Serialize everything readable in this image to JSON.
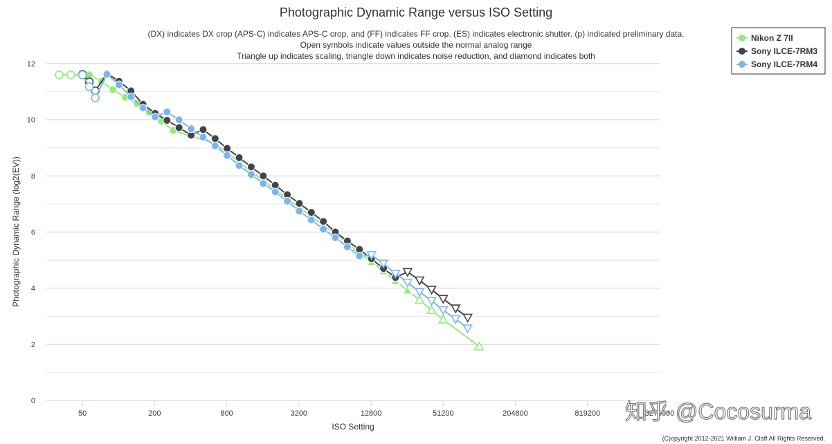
{
  "chart_data": {
    "type": "line",
    "title": "Photographic Dynamic Range versus ISO Setting",
    "subtitle_lines": [
      "(DX) indicates DX crop (APS-C) indicates APS-C crop, and (FF) indicates FF crop. (ES) indicates electronic shutter. (p) indicated preliminary data.",
      "Open symbols indicate values outside the normal analog range",
      "Triangle up indicates scaling, triangle down indicates noise reduction, and diamond indicates both"
    ],
    "xlabel": "ISO Setting",
    "ylabel": "Photographic Dynamic Range (log2(EV))",
    "x_scale": "log2",
    "xlim": [
      25,
      3276800
    ],
    "ylim": [
      0,
      12
    ],
    "x_ticks": [
      50,
      200,
      800,
      3200,
      12800,
      51200,
      204800,
      819200,
      3276800
    ],
    "x_tick_labels": [
      "50",
      "200",
      "800",
      "3200",
      "12800",
      "51200",
      "204800",
      "819200",
      "3276800"
    ],
    "y_ticks": [
      0,
      2,
      4,
      6,
      8,
      10,
      12
    ],
    "y_tick_labels": [
      "0",
      "2",
      "4",
      "6",
      "8",
      "10",
      "12"
    ],
    "grid": true,
    "legend_position": "top-right",
    "series": [
      {
        "name": "Nikon Z 7II",
        "color": "#90ed7d",
        "points": [
          {
            "x": 32,
            "y": 11.6,
            "marker": "circle",
            "open": true
          },
          {
            "x": 40,
            "y": 11.6,
            "marker": "circle",
            "open": true
          },
          {
            "x": 57,
            "y": 11.6,
            "marker": "circle",
            "open": false
          },
          {
            "x": 72,
            "y": 11.37,
            "marker": "circle",
            "open": false
          },
          {
            "x": 90,
            "y": 11.07,
            "marker": "circle",
            "open": false
          },
          {
            "x": 114,
            "y": 10.8,
            "marker": "circle",
            "open": false
          },
          {
            "x": 143,
            "y": 10.57,
            "marker": "circle",
            "open": false
          },
          {
            "x": 180,
            "y": 10.27,
            "marker": "circle",
            "open": false
          },
          {
            "x": 228,
            "y": 9.95,
            "marker": "circle",
            "open": false
          },
          {
            "x": 286,
            "y": 9.62,
            "marker": "circle",
            "open": false
          },
          {
            "x": 640,
            "y": 9.15,
            "marker": "circle",
            "open": false
          },
          {
            "x": 806,
            "y": 8.82,
            "marker": "circle",
            "open": false
          },
          {
            "x": 1016,
            "y": 8.5,
            "marker": "circle",
            "open": false
          },
          {
            "x": 1280,
            "y": 8.15,
            "marker": "circle",
            "open": false
          },
          {
            "x": 1613,
            "y": 7.85,
            "marker": "circle",
            "open": false
          },
          {
            "x": 2032,
            "y": 7.5,
            "marker": "circle",
            "open": false
          },
          {
            "x": 2560,
            "y": 7.2,
            "marker": "circle",
            "open": false
          },
          {
            "x": 3225,
            "y": 6.85,
            "marker": "circle",
            "open": false
          },
          {
            "x": 4064,
            "y": 6.58,
            "marker": "circle",
            "open": false
          },
          {
            "x": 5120,
            "y": 6.22,
            "marker": "circle",
            "open": false
          },
          {
            "x": 6451,
            "y": 5.97,
            "marker": "circle",
            "open": false
          },
          {
            "x": 8128,
            "y": 5.6,
            "marker": "triangle-up",
            "open": false
          },
          {
            "x": 10240,
            "y": 5.25,
            "marker": "triangle-up",
            "open": false
          },
          {
            "x": 12902,
            "y": 4.93,
            "marker": "triangle-up",
            "open": false
          },
          {
            "x": 16256,
            "y": 4.6,
            "marker": "triangle-up",
            "open": false
          },
          {
            "x": 20480,
            "y": 4.25,
            "marker": "triangle-up",
            "open": false
          },
          {
            "x": 25803,
            "y": 3.92,
            "marker": "triangle-up",
            "open": false
          },
          {
            "x": 32512,
            "y": 3.58,
            "marker": "triangle-up",
            "open": true
          },
          {
            "x": 40960,
            "y": 3.22,
            "marker": "triangle-up",
            "open": true
          },
          {
            "x": 51200,
            "y": 2.88,
            "marker": "triangle-up",
            "open": true
          },
          {
            "x": 102400,
            "y": 1.92,
            "marker": "triangle-up",
            "open": true
          }
        ]
      },
      {
        "name": "Sony ILCE-7RM3",
        "color": "#434348",
        "points": [
          {
            "x": 50,
            "y": 11.62,
            "marker": "circle",
            "open": true
          },
          {
            "x": 57,
            "y": 11.35,
            "marker": "circle",
            "open": true
          },
          {
            "x": 64,
            "y": 11.03,
            "marker": "circle",
            "open": true
          },
          {
            "x": 80,
            "y": 11.65,
            "marker": "circle",
            "open": false
          },
          {
            "x": 101,
            "y": 11.37,
            "marker": "circle",
            "open": false
          },
          {
            "x": 127,
            "y": 11.03,
            "marker": "circle",
            "open": false
          },
          {
            "x": 160,
            "y": 10.55,
            "marker": "circle",
            "open": false
          },
          {
            "x": 202,
            "y": 10.23,
            "marker": "circle",
            "open": false
          },
          {
            "x": 254,
            "y": 9.98,
            "marker": "circle",
            "open": false
          },
          {
            "x": 320,
            "y": 9.72,
            "marker": "circle",
            "open": false
          },
          {
            "x": 403,
            "y": 9.45,
            "marker": "circle",
            "open": false
          },
          {
            "x": 508,
            "y": 9.65,
            "marker": "circle",
            "open": false
          },
          {
            "x": 640,
            "y": 9.33,
            "marker": "circle",
            "open": false
          },
          {
            "x": 806,
            "y": 8.98,
            "marker": "circle",
            "open": false
          },
          {
            "x": 1016,
            "y": 8.65,
            "marker": "circle",
            "open": false
          },
          {
            "x": 1280,
            "y": 8.32,
            "marker": "circle",
            "open": false
          },
          {
            "x": 1613,
            "y": 8.0,
            "marker": "circle",
            "open": false
          },
          {
            "x": 2032,
            "y": 7.67,
            "marker": "circle",
            "open": false
          },
          {
            "x": 2560,
            "y": 7.33,
            "marker": "circle",
            "open": false
          },
          {
            "x": 3225,
            "y": 7.02,
            "marker": "circle",
            "open": false
          },
          {
            "x": 4064,
            "y": 6.7,
            "marker": "circle",
            "open": false
          },
          {
            "x": 5120,
            "y": 6.38,
            "marker": "circle",
            "open": false
          },
          {
            "x": 6451,
            "y": 6.0,
            "marker": "circle",
            "open": false
          },
          {
            "x": 8128,
            "y": 5.68,
            "marker": "circle",
            "open": false
          },
          {
            "x": 10240,
            "y": 5.38,
            "marker": "circle",
            "open": false
          },
          {
            "x": 12902,
            "y": 5.05,
            "marker": "circle",
            "open": false
          },
          {
            "x": 16256,
            "y": 4.7,
            "marker": "circle",
            "open": false
          },
          {
            "x": 20480,
            "y": 4.38,
            "marker": "circle",
            "open": false
          },
          {
            "x": 25803,
            "y": 4.58,
            "marker": "triangle-down",
            "open": true
          },
          {
            "x": 32512,
            "y": 4.28,
            "marker": "triangle-down",
            "open": true
          },
          {
            "x": 40960,
            "y": 3.95,
            "marker": "triangle-down",
            "open": true
          },
          {
            "x": 51200,
            "y": 3.62,
            "marker": "triangle-down",
            "open": true
          },
          {
            "x": 65024,
            "y": 3.28,
            "marker": "triangle-down",
            "open": true
          },
          {
            "x": 81920,
            "y": 2.95,
            "marker": "triangle-down",
            "open": true
          }
        ]
      },
      {
        "name": "Sony ILCE-7RM4",
        "color": "#7cb5ec",
        "points": [
          {
            "x": 50,
            "y": 11.6,
            "marker": "circle",
            "open": true
          },
          {
            "x": 57,
            "y": 11.18,
            "marker": "circle",
            "open": true
          },
          {
            "x": 64,
            "y": 10.78,
            "marker": "circle",
            "open": true
          },
          {
            "x": 80,
            "y": 11.62,
            "marker": "circle",
            "open": false
          },
          {
            "x": 101,
            "y": 11.25,
            "marker": "circle",
            "open": false
          },
          {
            "x": 127,
            "y": 10.82,
            "marker": "circle",
            "open": false
          },
          {
            "x": 160,
            "y": 10.42,
            "marker": "circle",
            "open": false
          },
          {
            "x": 202,
            "y": 10.1,
            "marker": "circle",
            "open": false
          },
          {
            "x": 254,
            "y": 10.28,
            "marker": "circle",
            "open": false
          },
          {
            "x": 320,
            "y": 10.0,
            "marker": "circle",
            "open": false
          },
          {
            "x": 403,
            "y": 9.68,
            "marker": "circle",
            "open": false
          },
          {
            "x": 508,
            "y": 9.38,
            "marker": "circle",
            "open": false
          },
          {
            "x": 640,
            "y": 9.07,
            "marker": "circle",
            "open": false
          },
          {
            "x": 806,
            "y": 8.73,
            "marker": "circle",
            "open": false
          },
          {
            "x": 1016,
            "y": 8.37,
            "marker": "circle",
            "open": false
          },
          {
            "x": 1280,
            "y": 8.05,
            "marker": "circle",
            "open": false
          },
          {
            "x": 1613,
            "y": 7.73,
            "marker": "circle",
            "open": false
          },
          {
            "x": 2032,
            "y": 7.43,
            "marker": "circle",
            "open": false
          },
          {
            "x": 2560,
            "y": 7.1,
            "marker": "circle",
            "open": false
          },
          {
            "x": 3225,
            "y": 6.75,
            "marker": "circle",
            "open": false
          },
          {
            "x": 4064,
            "y": 6.43,
            "marker": "circle",
            "open": false
          },
          {
            "x": 5120,
            "y": 6.1,
            "marker": "circle",
            "open": false
          },
          {
            "x": 6451,
            "y": 5.8,
            "marker": "circle",
            "open": false
          },
          {
            "x": 8128,
            "y": 5.47,
            "marker": "circle",
            "open": false
          },
          {
            "x": 10240,
            "y": 5.15,
            "marker": "circle",
            "open": false
          },
          {
            "x": 12902,
            "y": 5.18,
            "marker": "triangle-down",
            "open": true
          },
          {
            "x": 16256,
            "y": 4.88,
            "marker": "triangle-down",
            "open": true
          },
          {
            "x": 20480,
            "y": 4.52,
            "marker": "triangle-down",
            "open": true
          },
          {
            "x": 25803,
            "y": 4.2,
            "marker": "triangle-down",
            "open": true
          },
          {
            "x": 32512,
            "y": 3.87,
            "marker": "triangle-down",
            "open": true
          },
          {
            "x": 40960,
            "y": 3.55,
            "marker": "triangle-down",
            "open": true
          },
          {
            "x": 51200,
            "y": 3.22,
            "marker": "triangle-down",
            "open": true
          },
          {
            "x": 65024,
            "y": 2.9,
            "marker": "triangle-down",
            "open": true
          },
          {
            "x": 81920,
            "y": 2.57,
            "marker": "triangle-down",
            "open": true
          }
        ]
      }
    ]
  },
  "copyright": "(C)opyright 2012-2021 William J. Claff All Rights Reserved.",
  "watermark": "知乎 @Cocosurma"
}
